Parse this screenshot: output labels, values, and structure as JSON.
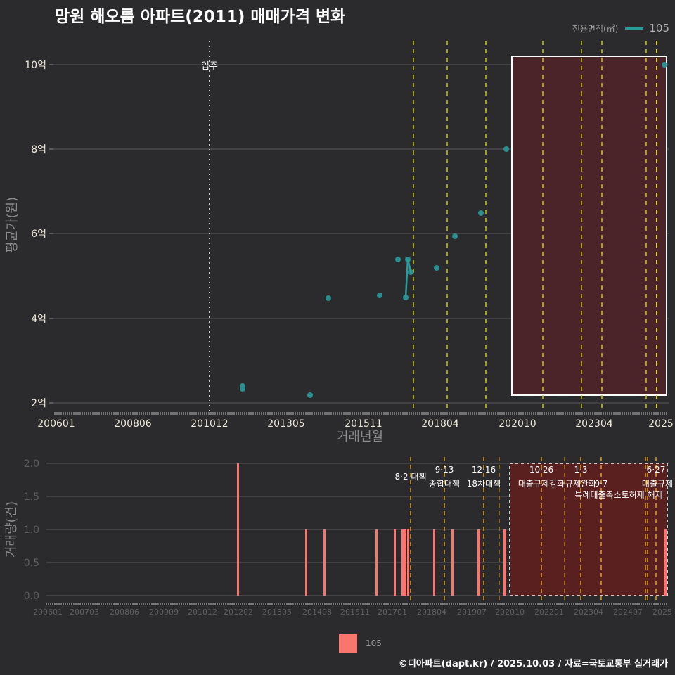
{
  "title": "망원 해오름 아파트(2011) 매매가격 변화",
  "legend_top": {
    "label": "전용면적(㎡)",
    "value": "105",
    "color": "#2a9a9a"
  },
  "legend_bottom": {
    "label": "105",
    "color": "#f8766d"
  },
  "footer": "©디아파트(dapt.kr) / 2025.10.03 / 자료=국토교통부 실거래가",
  "chart_data": [
    {
      "type": "scatter",
      "title": "망원 해오름 아파트(2011) 매매가격 변화",
      "xlabel": "거래년월",
      "ylabel": "평균가(원)",
      "x_ticks": [
        "200601",
        "200806",
        "201012",
        "201305",
        "201511",
        "201804",
        "202010",
        "202304",
        "2025"
      ],
      "y_ticks": [
        "2억",
        "4억",
        "6억",
        "8억",
        "10억"
      ],
      "ylim": [
        2,
        10.2
      ],
      "grid": true,
      "annotation_move_in": {
        "label": "입주",
        "x": "201012"
      },
      "points": [
        {
          "x": "201202",
          "y": 2.35
        },
        {
          "x": "201202",
          "y": 2.4
        },
        {
          "x": "201408",
          "y": 2.2
        },
        {
          "x": "201502",
          "y": 4.5
        },
        {
          "x": "201610",
          "y": 4.55
        },
        {
          "x": "201704",
          "y": 5.4
        },
        {
          "x": "201707",
          "y": 4.5
        },
        {
          "x": "201708",
          "y": 5.4
        },
        {
          "x": "201709",
          "y": 5.1
        },
        {
          "x": "201803",
          "y": 5.2
        },
        {
          "x": "201809",
          "y": 5.95
        },
        {
          "x": "201908",
          "y": 6.5
        },
        {
          "x": "202005",
          "y": 8.0
        },
        {
          "x": "202509",
          "y": 10.0
        }
      ],
      "series": [
        {
          "name": "105",
          "color": "#2a9a9a"
        }
      ],
      "highlight_box": {
        "from": "202010",
        "to": "202509",
        "ymin": 2.2,
        "ymax": 10.2
      }
    },
    {
      "type": "bar",
      "ylabel": "거래량(건)",
      "y_ticks": [
        "0.0",
        "0.5",
        "1.0",
        "1.5",
        "2.0"
      ],
      "ylim": [
        0,
        2
      ],
      "x_ticks": [
        "200601",
        "200703",
        "200806",
        "200909",
        "201012",
        "201202",
        "201305",
        "201408",
        "201511",
        "201701",
        "201804",
        "201907",
        "202010",
        "202201",
        "202304",
        "202407",
        "2025"
      ],
      "bars": [
        {
          "x": "201202",
          "value": 2
        },
        {
          "x": "201408",
          "value": 1
        },
        {
          "x": "201502",
          "value": 1
        },
        {
          "x": "201610",
          "value": 1
        },
        {
          "x": "201704",
          "value": 1
        },
        {
          "x": "201707",
          "value": 1
        },
        {
          "x": "201708",
          "value": 1
        },
        {
          "x": "201709",
          "value": 1
        },
        {
          "x": "201803",
          "value": 1
        },
        {
          "x": "201809",
          "value": 1
        },
        {
          "x": "201908",
          "value": 1
        },
        {
          "x": "202005",
          "value": 1
        },
        {
          "x": "202509",
          "value": 1
        }
      ],
      "policy_annotations": [
        {
          "date": "8·2",
          "label": "대책"
        },
        {
          "date": "9·13",
          "label": "종합대책"
        },
        {
          "date": "12·16",
          "label": "18차대책"
        },
        {
          "date": "10·26",
          "label": "대출규제강화"
        },
        {
          "date": "1·3",
          "label": "규제완화"
        },
        {
          "date": "9·7",
          "label": "특례대출축소토허제 해제"
        },
        {
          "date": "6·27",
          "label": "대출규제"
        }
      ]
    }
  ],
  "top_axis": {
    "y_labels": [
      "10억",
      "8억",
      "6억",
      "4억",
      "2억"
    ],
    "x_labels": [
      "200601",
      "200806",
      "201012",
      "201305",
      "201511",
      "201804",
      "202010",
      "202304",
      "2025"
    ],
    "xlabel": "거래년월",
    "ylabel": "평균가(원)",
    "move_in": "입주"
  },
  "bottom_axis": {
    "y_labels": [
      "2.0",
      "1.5",
      "1.0",
      "0.5",
      "0.0"
    ],
    "x_labels": [
      "200601",
      "200703",
      "200806",
      "200909",
      "201012",
      "201202",
      "201305",
      "201408",
      "201511",
      "201701",
      "201804",
      "201907",
      "202010",
      "202201",
      "202304",
      "202407",
      "2025"
    ],
    "ylabel": "거래량(건)",
    "ann": [
      "8·2 대책",
      "9·13",
      "종합대책",
      "12·16",
      "18차대책",
      "10·26",
      "대출규제강화",
      "1·3",
      "규제완화",
      "9·7",
      "특례대출축소토허제 해제",
      "6·27",
      "대출규제"
    ]
  }
}
